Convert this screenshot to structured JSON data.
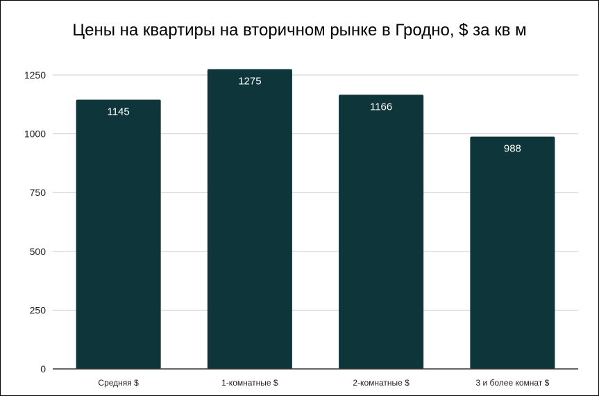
{
  "chart_data": {
    "type": "bar",
    "title": "Цены на квартиры на вторичном рынке в Гродно, $ за кв м",
    "categories": [
      "Средняя $",
      "1-комнатные $",
      "2-комнатные $",
      "3 и более комнат $"
    ],
    "values": [
      1145,
      1275,
      1166,
      988
    ],
    "data_labels": [
      "1145",
      "1275",
      "1166",
      "988"
    ],
    "y_ticks": [
      0,
      250,
      500,
      750,
      1000,
      1250
    ],
    "y_tick_labels": [
      "0",
      "250",
      "500",
      "750",
      "1000",
      "1250"
    ],
    "ylim": [
      0,
      1250
    ],
    "grid": true,
    "legend": "none",
    "bar_color": "#0d353a",
    "grid_color": "#cccccc",
    "axis_color": "#333333"
  }
}
